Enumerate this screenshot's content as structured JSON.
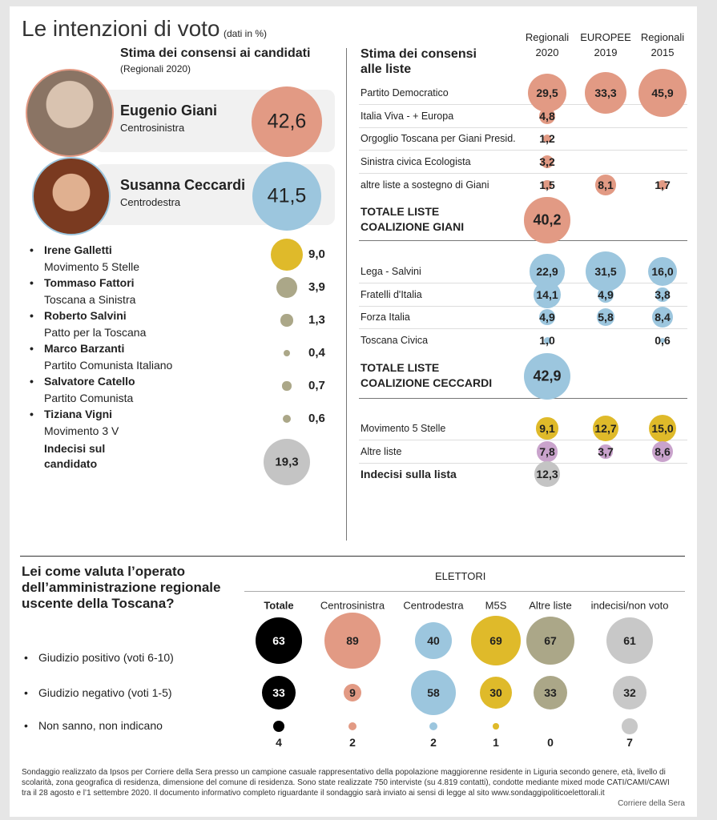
{
  "title": "Le intenzioni di voto",
  "title_note": "(dati in %)",
  "chart_data": [
    {
      "type": "candidates",
      "heading": "Stima dei consensi ai candidati",
      "note": "(Regionali 2020)",
      "categories": [
        "Eugenio Giani",
        "Susanna Ceccardi",
        "Irene Galletti",
        "Tommaso Fattori",
        "Roberto Salvini",
        "Marco Barzanti",
        "Salvatore Catello",
        "Tiziana Vigni",
        "Indecisi sul candidato"
      ],
      "groups": [
        "Centrosinistra",
        "Centrodestra",
        "Movimento 5 Stelle",
        "Toscana a Sinistra",
        "Patto per la Toscana",
        "Partito Comunista Italiano",
        "Partito Comunista",
        "Movimento 3 V",
        null
      ],
      "values": [
        42.6,
        41.5,
        9.0,
        3.9,
        1.3,
        0.4,
        0.7,
        0.6,
        19.3
      ],
      "value_labels": [
        "42,6",
        "41,5",
        "9,0",
        "3,9",
        "1,3",
        "0,4",
        "0,7",
        "0,6",
        "19,3"
      ],
      "colors": [
        "#e29a84",
        "#9cc6de",
        "#dfba2a",
        "#aba788",
        "#aba788",
        "#aba788",
        "#aba788",
        "#aba788",
        "#c4c4c4"
      ]
    },
    {
      "type": "lists",
      "heading": "Stima dei consensi alle liste",
      "categories": [
        "Partito Democratico",
        "Italia Viva - + Europa",
        "Orgoglio Toscana per Giani Presid.",
        "Sinistra civica Ecologista",
        "altre liste a sostegno di Giani",
        "TOTALE LISTE COALIZIONE GIANI",
        "Lega - Salvini",
        "Fratelli d'Italia",
        "Forza Italia",
        "Toscana Civica",
        "TOTALE LISTE COALIZIONE CECCARDI",
        "Movimento 5 Stelle",
        "Altre liste",
        "Indecisi sulla lista"
      ],
      "row_colors": [
        "#e29a84",
        "#e29a84",
        "#e29a84",
        "#e29a84",
        "#e29a84",
        "#e29a84",
        "#9cc6de",
        "#9cc6de",
        "#9cc6de",
        "#9cc6de",
        "#9cc6de",
        "#dfba2a",
        "#c9a3cc",
        "#c4c4c4"
      ],
      "series": [
        {
          "name": "Regionali",
          "year": "2020",
          "values": [
            29.5,
            4.8,
            1.2,
            3.2,
            1.5,
            40.2,
            22.9,
            14.1,
            4.9,
            1.0,
            42.9,
            9.1,
            7.8,
            12.3
          ],
          "value_labels": [
            "29,5",
            "4,8",
            "1,2",
            "3,2",
            "1,5",
            "40,2",
            "22,9",
            "14,1",
            "4,9",
            "1,0",
            "42,9",
            "9,1",
            "7,8",
            "12,3"
          ]
        },
        {
          "name": "EUROPEE",
          "year": "2019",
          "values": [
            33.3,
            null,
            null,
            null,
            8.1,
            null,
            31.5,
            4.9,
            5.8,
            null,
            null,
            12.7,
            3.7,
            null
          ],
          "value_labels": [
            "33,3",
            null,
            null,
            null,
            "8,1",
            null,
            "31,5",
            "4,9",
            "5,8",
            null,
            null,
            "12,7",
            "3,7",
            null
          ]
        },
        {
          "name": "Regionali",
          "year": "2015",
          "values": [
            45.9,
            null,
            null,
            null,
            1.7,
            null,
            16.0,
            3.8,
            8.4,
            0.6,
            null,
            15.0,
            8.6,
            null
          ],
          "value_labels": [
            "45,9",
            null,
            null,
            null,
            "1,7",
            null,
            "16,0",
            "3,8",
            "8,4",
            "0,6",
            null,
            "15,0",
            "8,6",
            null
          ]
        }
      ]
    },
    {
      "type": "grid",
      "heading": "Lei come valuta l’operato dell’amministrazione regionale uscente della Toscana?",
      "group_label": "ELETTORI",
      "columns": [
        "Totale",
        "Centrosinistra",
        "Centrodestra",
        "M5S",
        "Altre liste",
        "indecisi/non voto"
      ],
      "column_colors": [
        "#000000",
        "#e29a84",
        "#9cc6de",
        "#dfba2a",
        "#aba788",
        "#c8c8c8"
      ],
      "series": [
        {
          "name": "Giudizio positivo (voti 6-10)",
          "values": [
            63,
            89,
            40,
            69,
            67,
            61
          ]
        },
        {
          "name": "Giudizio negativo (voti 1-5)",
          "values": [
            33,
            9,
            58,
            30,
            33,
            32
          ]
        },
        {
          "name": "Non sanno, non indicano",
          "values": [
            4,
            2,
            2,
            1,
            0,
            7
          ]
        }
      ]
    }
  ],
  "footnote": "Sondaggio realizzato da Ipsos per Corriere della Sera presso un campione casuale  rappresentativo della popolazione maggiorenne residente in Liguria secondo genere, età, livello di scolarità, zona geografica di residenza, dimensione del comune di residenza. Sono state realizzate 750 interviste (su 4.819 contatti), condotte mediante mixed mode CATI/CAMI/CAWI tra il 28 agosto e l’1 settembre 2020.  Il documento informativo completo riguardante il sondaggio sarà inviato ai sensi di legge al sito www.sondaggipoliticoelettorali.it",
  "source": "Corriere della Sera"
}
